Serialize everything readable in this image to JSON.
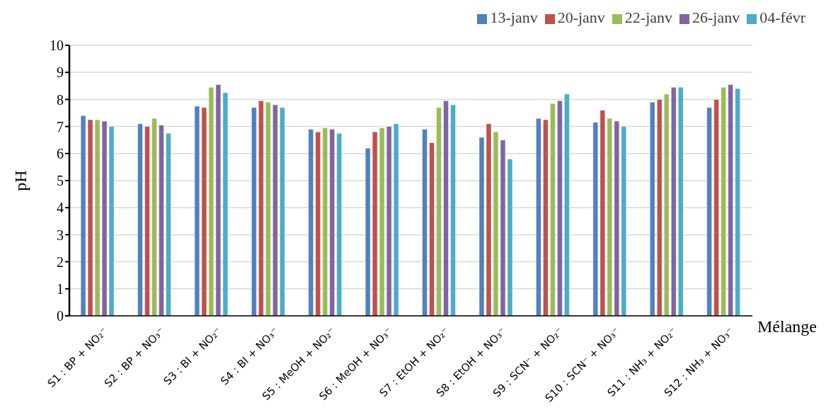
{
  "chart_data": {
    "type": "bar",
    "xlabel": "Mélange",
    "ylabel": "pH",
    "categories": [
      "S1 : BP + NO₂⁻",
      "S2 : BP + NO₃⁻",
      "S3 : BI + NO₂⁻",
      "S4 : BI + NO₃⁻",
      "S5 : MeOH + NO₂⁻",
      "S6 : MeOH + NO₃⁻",
      "S7 : EtOH + NO₂⁻",
      "S8 : EtOH + NO₃⁻",
      "S9 : SCN⁻ + NO₂⁻",
      "S10 : SCN⁻ + NO₃⁻",
      "S11 : NH₃ + NO₂⁻",
      "S12 : NH₃ + NO₃⁻"
    ],
    "series": [
      {
        "name": "13-janv",
        "color": "#4f81bd",
        "values": [
          7.4,
          7.1,
          7.75,
          7.7,
          6.9,
          6.2,
          6.9,
          6.6,
          7.3,
          7.15,
          7.9,
          7.7
        ]
      },
      {
        "name": "20-janv",
        "color": "#c0504d",
        "values": [
          7.25,
          7.0,
          7.7,
          7.95,
          6.8,
          6.8,
          6.4,
          7.1,
          7.25,
          7.6,
          8.0,
          8.0
        ]
      },
      {
        "name": "22-janv",
        "color": "#9bbb59",
        "values": [
          7.25,
          7.3,
          8.45,
          7.9,
          6.95,
          6.95,
          7.7,
          6.8,
          7.85,
          7.3,
          8.2,
          8.45
        ]
      },
      {
        "name": "26-janv",
        "color": "#8064a2",
        "values": [
          7.2,
          7.05,
          8.55,
          7.8,
          6.9,
          7.0,
          7.95,
          6.5,
          7.95,
          7.2,
          8.45,
          8.55
        ]
      },
      {
        "name": "04-févr",
        "color": "#4bacc6",
        "values": [
          7.0,
          6.75,
          8.25,
          7.7,
          6.75,
          7.1,
          7.8,
          5.8,
          8.2,
          7.0,
          8.45,
          8.4
        ]
      }
    ],
    "ylim": [
      0,
      10
    ],
    "yticks": [
      0,
      1,
      2,
      3,
      4,
      5,
      6,
      7,
      8,
      9,
      10
    ],
    "grid": "y",
    "legend": "top right"
  }
}
